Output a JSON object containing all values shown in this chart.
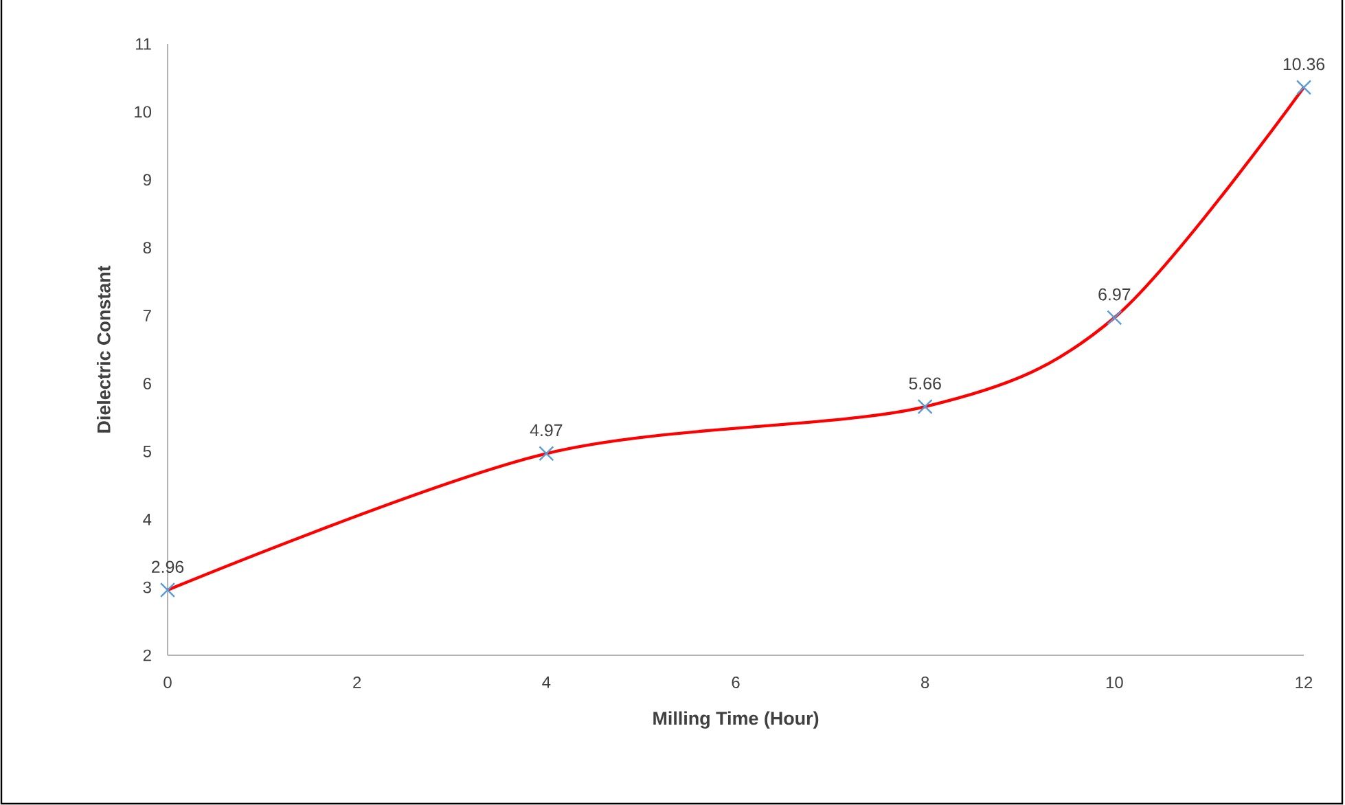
{
  "chart_data": {
    "type": "line",
    "xlabel": "Milling  Time (Hour)",
    "ylabel": "Dielectric Constant",
    "x": [
      0,
      4,
      8,
      10,
      12
    ],
    "series": [
      {
        "color": "#ff0000",
        "colors": [
          "#5b9bd5",
          "#5b9bd5",
          "#5b9bd5",
          "#5b9bd5",
          "#5b9bd5"
        ],
        "values": [
          2.96,
          4.97,
          5.66,
          6.97,
          10.36
        ]
      }
    ],
    "xlim": [
      0,
      12
    ],
    "ylim": [
      2,
      11
    ],
    "xticks": [
      0,
      2,
      4,
      6,
      8,
      10,
      12
    ],
    "yticks": [
      2,
      3,
      4,
      5,
      6,
      7,
      8,
      9,
      10,
      11
    ],
    "marker": "cross",
    "line_style": "solid",
    "data_labels": true
  }
}
